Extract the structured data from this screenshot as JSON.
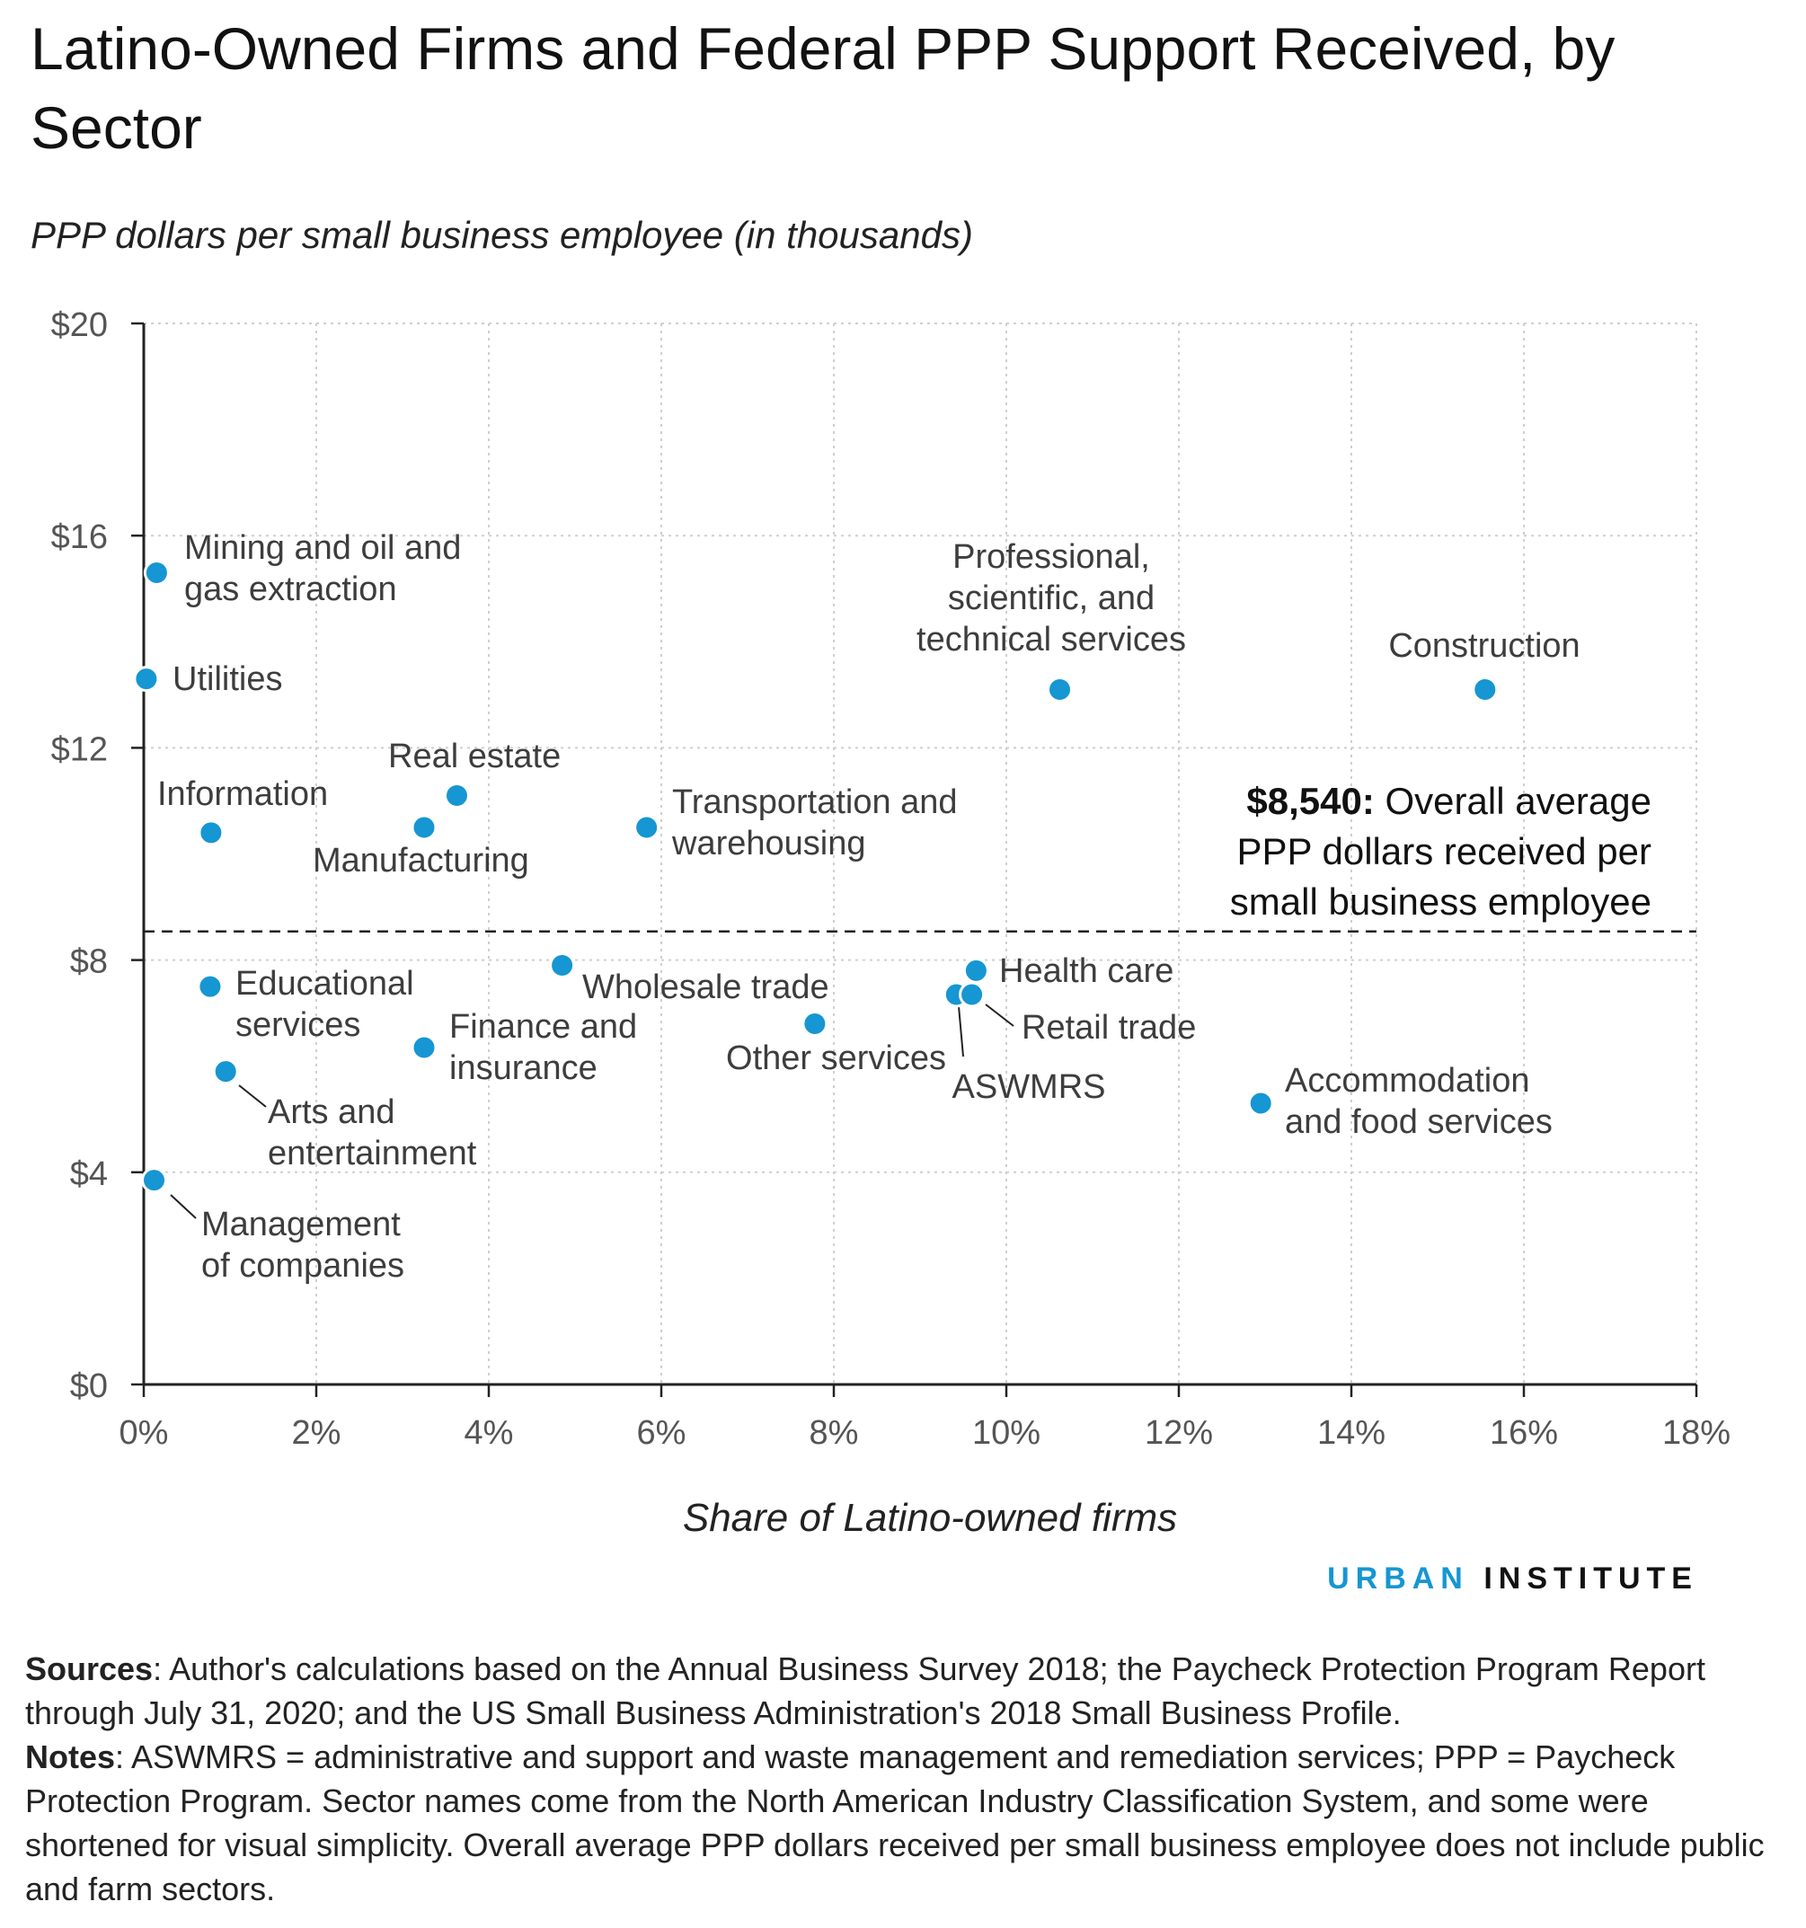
{
  "title": "Latino-Owned Firms and Federal PPP Support Received, by Sector",
  "chart_data": {
    "type": "scatter",
    "title": "Latino-Owned Firms and Federal PPP Support Received, by Sector",
    "ylabel": "PPP dollars per small business employee (in thousands)",
    "xlabel": "Share of Latino-owned firms",
    "xlim": [
      0,
      18
    ],
    "ylim": [
      0,
      20
    ],
    "x_ticks": [
      "0%",
      "2%",
      "4%",
      "6%",
      "8%",
      "10%",
      "12%",
      "14%",
      "16%",
      "18%"
    ],
    "y_ticks": [
      "$0",
      "$4",
      "$8",
      "$12",
      "$16",
      "$20"
    ],
    "grid": true,
    "point_color": "#1696d2",
    "points": [
      {
        "label": "Mining and oil and gas extraction",
        "label_lines": [
          "Mining and oil and",
          "gas extraction"
        ],
        "x": 0.15,
        "y": 15.3
      },
      {
        "label": "Utilities",
        "label_lines": [
          "Utilities"
        ],
        "x": 0.03,
        "y": 13.3
      },
      {
        "label": "Information",
        "label_lines": [
          "Information"
        ],
        "x": 0.78,
        "y": 10.4
      },
      {
        "label": "Real estate",
        "label_lines": [
          "Real estate"
        ],
        "x": 3.63,
        "y": 11.1
      },
      {
        "label": "Manufacturing",
        "label_lines": [
          "Manufacturing"
        ],
        "x": 3.25,
        "y": 10.5
      },
      {
        "label": "Transportation and warehousing",
        "label_lines": [
          "Transportation and",
          "warehousing"
        ],
        "x": 5.83,
        "y": 10.5
      },
      {
        "label": "Professional, scientific, and technical services",
        "label_lines": [
          "Professional,",
          "scientific, and",
          "technical services"
        ],
        "x": 10.62,
        "y": 13.1
      },
      {
        "label": "Construction",
        "label_lines": [
          "Construction"
        ],
        "x": 15.55,
        "y": 13.1
      },
      {
        "label": "Educational services",
        "label_lines": [
          "Educational",
          "services"
        ],
        "x": 0.77,
        "y": 7.5
      },
      {
        "label": "Arts and entertainment",
        "label_lines": [
          "Arts and",
          "entertainment"
        ],
        "x": 0.95,
        "y": 5.9
      },
      {
        "label": "Management of companies",
        "label_lines": [
          "Management",
          "of companies"
        ],
        "x": 0.12,
        "y": 3.85
      },
      {
        "label": "Finance and insurance",
        "label_lines": [
          "Finance and",
          "insurance"
        ],
        "x": 3.25,
        "y": 6.35
      },
      {
        "label": "Wholesale trade",
        "label_lines": [
          "Wholesale trade"
        ],
        "x": 4.85,
        "y": 7.9
      },
      {
        "label": "Other services",
        "label_lines": [
          "Other services"
        ],
        "x": 7.78,
        "y": 6.8
      },
      {
        "label": "ASWMRS",
        "label_lines": [
          "ASWMRS"
        ],
        "x": 9.42,
        "y": 7.35
      },
      {
        "label": "Retail trade",
        "label_lines": [
          "Retail trade"
        ],
        "x": 9.6,
        "y": 7.35
      },
      {
        "label": "Health care",
        "label_lines": [
          "Health care"
        ],
        "x": 9.65,
        "y": 7.8
      },
      {
        "label": "Accommodation and food services",
        "label_lines": [
          "Accommodation",
          "and food services"
        ],
        "x": 12.95,
        "y": 5.3
      }
    ],
    "reference_line": {
      "y": 8.54,
      "style": "dashed",
      "annotation_bold": "$8,540:",
      "annotation_lines": [
        "Overall average",
        "PPP dollars received per",
        "small business employee"
      ]
    }
  },
  "logo": {
    "urban": "URBAN",
    "institute": "INSTITUTE"
  },
  "footer": {
    "sources_label": "Sources",
    "sources_text": ": Author's calculations based on the Annual Business Survey 2018; the Paycheck Protection Program Report through July 31, 2020; and the US Small Business Administration's 2018 Small Business Profile.",
    "notes_label": "Notes",
    "notes_text": ": ASWMRS = administrative and support and waste management and remediation services; PPP = Paycheck Protection Program. Sector names come from the North American Industry Classification System, and some were shortened for visual simplicity. Overall average PPP dollars received per small business employee does not include public and farm sectors."
  }
}
